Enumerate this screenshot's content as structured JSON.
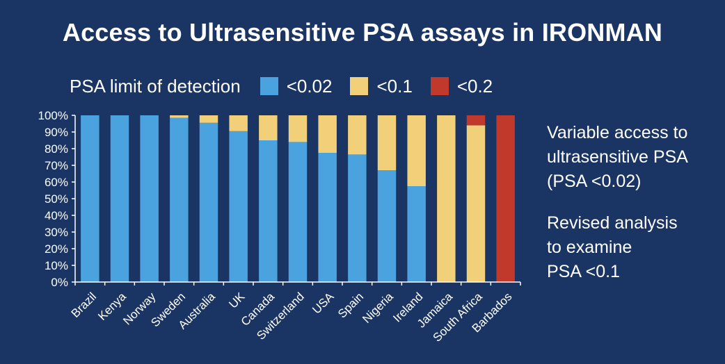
{
  "title": "Access to Ultrasensitive PSA assays in IRONMAN",
  "legend": {
    "title": "PSA limit of detection",
    "items": [
      {
        "label": "<0.02",
        "color": "#4aa3df"
      },
      {
        "label": "<0.1",
        "color": "#f2d07a"
      },
      {
        "label": "<0.2",
        "color": "#c0392b"
      }
    ]
  },
  "side_text": {
    "note1": "Variable access to\nultrasensitive PSA\n(PSA <0.02)",
    "note2": "Revised analysis\nto examine\nPSA <0.1"
  },
  "chart_data": {
    "type": "bar",
    "stacked": true,
    "title": "Access to Ultrasensitive PSA assays in IRONMAN",
    "xlabel": "",
    "ylabel": "",
    "ylim": [
      0,
      100
    ],
    "y_ticks": [
      "0%",
      "10%",
      "20%",
      "30%",
      "40%",
      "50%",
      "60%",
      "70%",
      "80%",
      "90%",
      "100%"
    ],
    "categories": [
      "Brazil",
      "Kenya",
      "Norway",
      "Sweden",
      "Australia",
      "UK",
      "Canada",
      "Switzerland",
      "USA",
      "Spain",
      "Nigeria",
      "Ireland",
      "Jamaica",
      "South Africa",
      "Barbados"
    ],
    "series": [
      {
        "name": "<0.02",
        "color": "#4aa3df",
        "values": [
          100,
          100,
          100,
          98.5,
          95.5,
          90.5,
          85,
          84,
          77.5,
          76.5,
          67,
          57.5,
          0,
          0,
          0
        ]
      },
      {
        "name": "<0.1",
        "color": "#f2d07a",
        "values": [
          0,
          0,
          0,
          1.5,
          4.5,
          9.5,
          15,
          16,
          22.5,
          23.5,
          33,
          42.5,
          100,
          94,
          0
        ]
      },
      {
        "name": "<0.2",
        "color": "#c0392b",
        "values": [
          0,
          0,
          0,
          0,
          0,
          0,
          0,
          0,
          0,
          0,
          0,
          0,
          0,
          6,
          100
        ]
      }
    ],
    "legend_position": "top",
    "grid": false
  }
}
